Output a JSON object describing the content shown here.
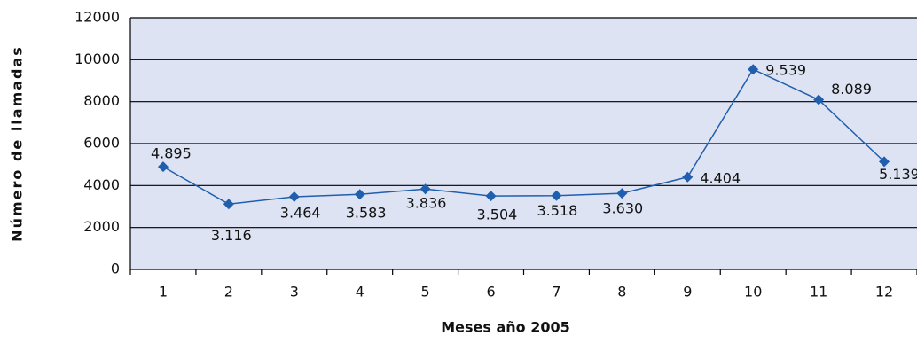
{
  "chart_data": {
    "type": "line",
    "y_label": "Número de llamadas",
    "x_label": "Meses año 2005",
    "categories": [
      "1",
      "2",
      "3",
      "4",
      "5",
      "6",
      "7",
      "8",
      "9",
      "10",
      "11",
      "12"
    ],
    "series": [
      {
        "name": "Llamadas",
        "color": "#1f5fad",
        "values": [
          4895,
          3116,
          3464,
          3583,
          3836,
          3504,
          3518,
          3630,
          4404,
          9539,
          8089,
          5139
        ],
        "value_labels": [
          "4.895",
          "3.116",
          "3.464",
          "3.583",
          "3.836",
          "3.504",
          "3.518",
          "3.630",
          "4.404",
          "9.539",
          "8.089",
          "5.139"
        ]
      }
    ],
    "ylim": [
      0,
      12000
    ],
    "yticks": [
      0,
      2000,
      4000,
      6000,
      8000,
      10000,
      12000
    ],
    "grid": true,
    "plot_background": "#dde3f3"
  }
}
